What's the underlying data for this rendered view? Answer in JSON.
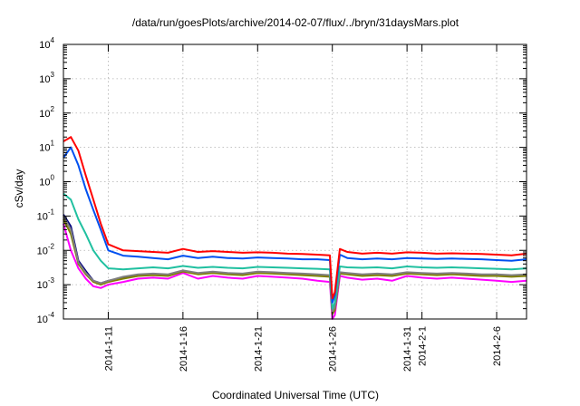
{
  "chart_data": {
    "type": "line",
    "title": "/data/run/goesPlots/archive/2014-02-07/flux/../bryn/31daysMars.plot",
    "xlabel": "Coordinated Universal Time (UTC)",
    "ylabel": "cSv/day",
    "yscale": "log",
    "ylim": [
      0.0001,
      10000
    ],
    "y_ticks": [
      {
        "base": "10",
        "exp": "-4"
      },
      {
        "base": "10",
        "exp": "-3"
      },
      {
        "base": "10",
        "exp": "-2"
      },
      {
        "base": "10",
        "exp": "-1"
      },
      {
        "base": "10",
        "exp": "0"
      },
      {
        "base": "10",
        "exp": "1"
      },
      {
        "base": "10",
        "exp": "2"
      },
      {
        "base": "10",
        "exp": "3"
      },
      {
        "base": "10",
        "exp": "4"
      }
    ],
    "xlim": [
      "2014-01-08",
      "2014-02-08"
    ],
    "x_ticks": [
      "2014-1-11",
      "2014-1-16",
      "2014-1-21",
      "2014-1-26",
      "2014-1-31",
      "2014-2-1",
      "2014-2-6"
    ],
    "x_tick_dates": [
      "2014-01-11",
      "2014-01-16",
      "2014-01-21",
      "2014-01-26",
      "2014-01-31",
      "2014-02-01",
      "2014-02-06"
    ],
    "grid": true,
    "series": [
      {
        "color": "#ff00ff",
        "x": [
          "2014-01-08",
          "2014-01-08T12:00",
          "2014-01-09",
          "2014-01-09T12:00",
          "2014-01-10",
          "2014-01-10T12:00",
          "2014-01-11",
          "2014-01-12",
          "2014-01-13",
          "2014-01-14",
          "2014-01-15",
          "2014-01-16",
          "2014-01-17",
          "2014-01-18",
          "2014-01-19",
          "2014-01-20",
          "2014-01-21",
          "2014-01-22",
          "2014-01-23",
          "2014-01-24",
          "2014-01-25",
          "2014-01-25T20:00",
          "2014-01-26",
          "2014-01-26T04:00",
          "2014-01-26T12:00",
          "2014-01-27",
          "2014-01-28",
          "2014-01-29",
          "2014-01-30",
          "2014-01-31",
          "2014-02-01",
          "2014-02-02",
          "2014-02-03",
          "2014-02-04",
          "2014-02-05",
          "2014-02-06",
          "2014-02-07",
          "2014-02-08"
        ],
        "values": [
          0.06,
          0.01,
          0.003,
          0.0015,
          0.0009,
          0.0008,
          0.001,
          0.0012,
          0.0015,
          0.0016,
          0.0015,
          0.0022,
          0.0015,
          0.0018,
          0.0016,
          0.0015,
          0.0018,
          0.0017,
          0.0016,
          0.0015,
          0.0013,
          0.0012,
          0.0001,
          0.00013,
          0.0018,
          0.0016,
          0.0014,
          0.0015,
          0.0013,
          0.0018,
          0.0016,
          0.0015,
          0.0016,
          0.0015,
          0.0014,
          0.0013,
          0.0012,
          0.0013
        ]
      },
      {
        "color": "#000080",
        "x": [
          "2014-01-08",
          "2014-01-08T12:00",
          "2014-01-09",
          "2014-01-09T12:00",
          "2014-01-10",
          "2014-01-10T12:00",
          "2014-01-11",
          "2014-01-12",
          "2014-01-13",
          "2014-01-14",
          "2014-01-15",
          "2014-01-16",
          "2014-01-17",
          "2014-01-18",
          "2014-01-19",
          "2014-01-20",
          "2014-01-21",
          "2014-01-22",
          "2014-01-23",
          "2014-01-24",
          "2014-01-25",
          "2014-01-25T20:00",
          "2014-01-26",
          "2014-01-26T04:00",
          "2014-01-26T12:00",
          "2014-01-27",
          "2014-01-28",
          "2014-01-29",
          "2014-01-30",
          "2014-01-31",
          "2014-02-01",
          "2014-02-02",
          "2014-02-03",
          "2014-02-04",
          "2014-02-05",
          "2014-02-06",
          "2014-02-07",
          "2014-02-08"
        ],
        "values": [
          0.11,
          0.05,
          0.005,
          0.0025,
          0.0013,
          0.0011,
          0.0013,
          0.0016,
          0.0019,
          0.002,
          0.0019,
          0.0025,
          0.0021,
          0.0023,
          0.0021,
          0.002,
          0.0023,
          0.0022,
          0.0021,
          0.002,
          0.0019,
          0.0018,
          0.00015,
          0.0002,
          0.0022,
          0.0021,
          0.0019,
          0.002,
          0.0019,
          0.0022,
          0.0021,
          0.002,
          0.0021,
          0.002,
          0.0019,
          0.0019,
          0.0018,
          0.0019
        ]
      },
      {
        "color": "#808000",
        "x": [
          "2014-01-08",
          "2014-01-08T12:00",
          "2014-01-09",
          "2014-01-09T12:00",
          "2014-01-10",
          "2014-01-10T12:00",
          "2014-01-11",
          "2014-01-12",
          "2014-01-13",
          "2014-01-14",
          "2014-01-15",
          "2014-01-16",
          "2014-01-17",
          "2014-01-18",
          "2014-01-19",
          "2014-01-20",
          "2014-01-21",
          "2014-01-22",
          "2014-01-23",
          "2014-01-24",
          "2014-01-25",
          "2014-01-25T20:00",
          "2014-01-26",
          "2014-01-26T04:00",
          "2014-01-26T12:00",
          "2014-01-27",
          "2014-01-28",
          "2014-01-29",
          "2014-01-30",
          "2014-01-31",
          "2014-02-01",
          "2014-02-02",
          "2014-02-03",
          "2014-02-04",
          "2014-02-05",
          "2014-02-06",
          "2014-02-07",
          "2014-02-08"
        ],
        "values": [
          0.08,
          0.03,
          0.004,
          0.002,
          0.0012,
          0.001,
          0.0012,
          0.0015,
          0.0018,
          0.0019,
          0.0018,
          0.0024,
          0.002,
          0.0022,
          0.002,
          0.0019,
          0.0022,
          0.0021,
          0.002,
          0.0019,
          0.0018,
          0.0017,
          0.00014,
          0.00018,
          0.0021,
          0.002,
          0.0018,
          0.0019,
          0.0018,
          0.0021,
          0.002,
          0.0019,
          0.002,
          0.0019,
          0.0018,
          0.0018,
          0.0017,
          0.0018
        ]
      },
      {
        "color": "#7f7f7f",
        "x": [
          "2014-01-08",
          "2014-01-08T12:00",
          "2014-01-09",
          "2014-01-09T12:00",
          "2014-01-10",
          "2014-01-10T12:00",
          "2014-01-11",
          "2014-01-12",
          "2014-01-13",
          "2014-01-14",
          "2014-01-15",
          "2014-01-16",
          "2014-01-17",
          "2014-01-18",
          "2014-01-19",
          "2014-01-20",
          "2014-01-21",
          "2014-01-22",
          "2014-01-23",
          "2014-01-24",
          "2014-01-25",
          "2014-01-25T20:00",
          "2014-01-26",
          "2014-01-26T04:00",
          "2014-01-26T12:00",
          "2014-01-27",
          "2014-01-28",
          "2014-01-29",
          "2014-01-30",
          "2014-01-31",
          "2014-02-01",
          "2014-02-02",
          "2014-02-03",
          "2014-02-04",
          "2014-02-05",
          "2014-02-06",
          "2014-02-07",
          "2014-02-08"
        ],
        "values": [
          0.1,
          0.04,
          0.0045,
          0.0022,
          0.0013,
          0.0011,
          0.0013,
          0.0017,
          0.002,
          0.0021,
          0.002,
          0.0026,
          0.0022,
          0.0024,
          0.0022,
          0.0021,
          0.0024,
          0.0023,
          0.0022,
          0.0021,
          0.002,
          0.0019,
          0.00016,
          0.00022,
          0.0023,
          0.0022,
          0.002,
          0.0021,
          0.002,
          0.0023,
          0.0022,
          0.0021,
          0.0022,
          0.0021,
          0.002,
          0.002,
          0.0019,
          0.002
        ]
      },
      {
        "color": "#20c0a0",
        "x": [
          "2014-01-08",
          "2014-01-08T12:00",
          "2014-01-09",
          "2014-01-09T12:00",
          "2014-01-10",
          "2014-01-10T12:00",
          "2014-01-11",
          "2014-01-12",
          "2014-01-13",
          "2014-01-14",
          "2014-01-15",
          "2014-01-16",
          "2014-01-17",
          "2014-01-18",
          "2014-01-19",
          "2014-01-20",
          "2014-01-21",
          "2014-01-22",
          "2014-01-23",
          "2014-01-24",
          "2014-01-25",
          "2014-01-25T20:00",
          "2014-01-26",
          "2014-01-26T04:00",
          "2014-01-26T12:00",
          "2014-01-27",
          "2014-01-28",
          "2014-01-29",
          "2014-01-30",
          "2014-01-31",
          "2014-02-01",
          "2014-02-02",
          "2014-02-03",
          "2014-02-04",
          "2014-02-05",
          "2014-02-06",
          "2014-02-07",
          "2014-02-08"
        ],
        "values": [
          0.45,
          0.3,
          0.08,
          0.03,
          0.01,
          0.005,
          0.003,
          0.0028,
          0.003,
          0.0032,
          0.003,
          0.0035,
          0.0031,
          0.0033,
          0.0031,
          0.003,
          0.0033,
          0.0032,
          0.0031,
          0.003,
          0.0029,
          0.0028,
          0.0002,
          0.0003,
          0.0034,
          0.0032,
          0.0031,
          0.0032,
          0.003,
          0.0034,
          0.0032,
          0.0031,
          0.0032,
          0.0031,
          0.003,
          0.0029,
          0.0028,
          0.003
        ]
      },
      {
        "color": "#0050f0",
        "x": [
          "2014-01-08",
          "2014-01-08T12:00",
          "2014-01-09",
          "2014-01-09T12:00",
          "2014-01-10",
          "2014-01-10T12:00",
          "2014-01-11",
          "2014-01-12",
          "2014-01-13",
          "2014-01-14",
          "2014-01-15",
          "2014-01-16",
          "2014-01-17",
          "2014-01-18",
          "2014-01-19",
          "2014-01-20",
          "2014-01-21",
          "2014-01-22",
          "2014-01-23",
          "2014-01-24",
          "2014-01-25",
          "2014-01-25T20:00",
          "2014-01-26",
          "2014-01-26T04:00",
          "2014-01-26T12:00",
          "2014-01-27",
          "2014-01-28",
          "2014-01-29",
          "2014-01-30",
          "2014-01-31",
          "2014-02-01",
          "2014-02-02",
          "2014-02-03",
          "2014-02-04",
          "2014-02-05",
          "2014-02-06",
          "2014-02-07",
          "2014-02-08"
        ],
        "values": [
          5,
          10,
          3,
          0.6,
          0.15,
          0.04,
          0.01,
          0.007,
          0.0065,
          0.006,
          0.0055,
          0.007,
          0.006,
          0.0065,
          0.006,
          0.0058,
          0.0062,
          0.006,
          0.0058,
          0.0055,
          0.0055,
          0.0052,
          0.0003,
          0.0005,
          0.0075,
          0.006,
          0.0055,
          0.0058,
          0.0055,
          0.006,
          0.0058,
          0.0056,
          0.0058,
          0.0056,
          0.0055,
          0.0052,
          0.005,
          0.0055
        ]
      },
      {
        "color": "#ff0000",
        "x": [
          "2014-01-08",
          "2014-01-08T12:00",
          "2014-01-09",
          "2014-01-09T12:00",
          "2014-01-10",
          "2014-01-10T12:00",
          "2014-01-11",
          "2014-01-12",
          "2014-01-13",
          "2014-01-14",
          "2014-01-15",
          "2014-01-16",
          "2014-01-17",
          "2014-01-18",
          "2014-01-19",
          "2014-01-20",
          "2014-01-21",
          "2014-01-22",
          "2014-01-23",
          "2014-01-24",
          "2014-01-25",
          "2014-01-25T20:00",
          "2014-01-26",
          "2014-01-26T04:00",
          "2014-01-26T12:00",
          "2014-01-27",
          "2014-01-28",
          "2014-01-29",
          "2014-01-30",
          "2014-01-31",
          "2014-02-01",
          "2014-02-02",
          "2014-02-03",
          "2014-02-04",
          "2014-02-05",
          "2014-02-06",
          "2014-02-07",
          "2014-02-08"
        ],
        "values": [
          15,
          20,
          8,
          1.5,
          0.3,
          0.06,
          0.015,
          0.01,
          0.0095,
          0.009,
          0.0085,
          0.011,
          0.009,
          0.0095,
          0.009,
          0.0085,
          0.0088,
          0.0085,
          0.008,
          0.0078,
          0.0075,
          0.0072,
          0.0004,
          0.0006,
          0.011,
          0.009,
          0.008,
          0.0085,
          0.008,
          0.0088,
          0.0085,
          0.008,
          0.0082,
          0.008,
          0.0078,
          0.0075,
          0.0072,
          0.008
        ]
      }
    ]
  }
}
